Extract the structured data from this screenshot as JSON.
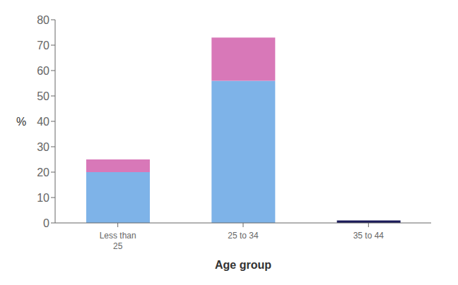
{
  "chart_data": {
    "type": "bar",
    "stacked": true,
    "grid": false,
    "categories": [
      "Less than\n25",
      "25 to 34",
      "35 to 44"
    ],
    "series": [
      {
        "colors": [
          "#7EB3E8",
          "#7EB3E8",
          "#1A1A5A"
        ],
        "values": [
          20,
          56,
          1
        ]
      },
      {
        "color": "#D878B8",
        "values": [
          5,
          17,
          0
        ]
      }
    ],
    "xlabel": "Age group",
    "ylabel": "%",
    "ylim": [
      0,
      80
    ],
    "yticks": [
      0,
      10,
      20,
      30,
      40,
      50,
      60,
      70,
      80
    ]
  }
}
